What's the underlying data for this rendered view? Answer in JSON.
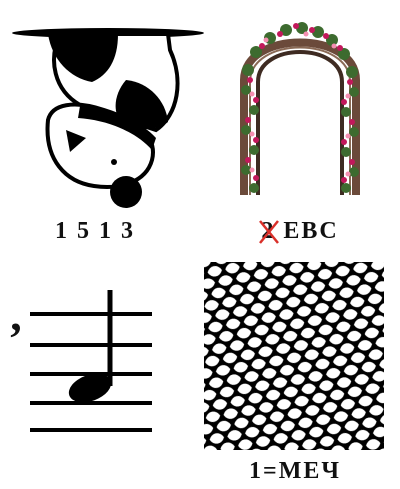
{
  "puzzle": {
    "panels": [
      {
        "id": "panda",
        "icon": "upside-down-panda",
        "caption": "1 5 1 3"
      },
      {
        "id": "arch",
        "icon": "rose-arch",
        "caption_struck": "2",
        "caption_rest": "ЕВС",
        "strike_color": "#d9302a"
      },
      {
        "id": "note",
        "icon": "music-staff-note"
      },
      {
        "id": "net",
        "icon": "net-mesh",
        "caption": "1=МЕЧ"
      }
    ],
    "mark": ","
  }
}
